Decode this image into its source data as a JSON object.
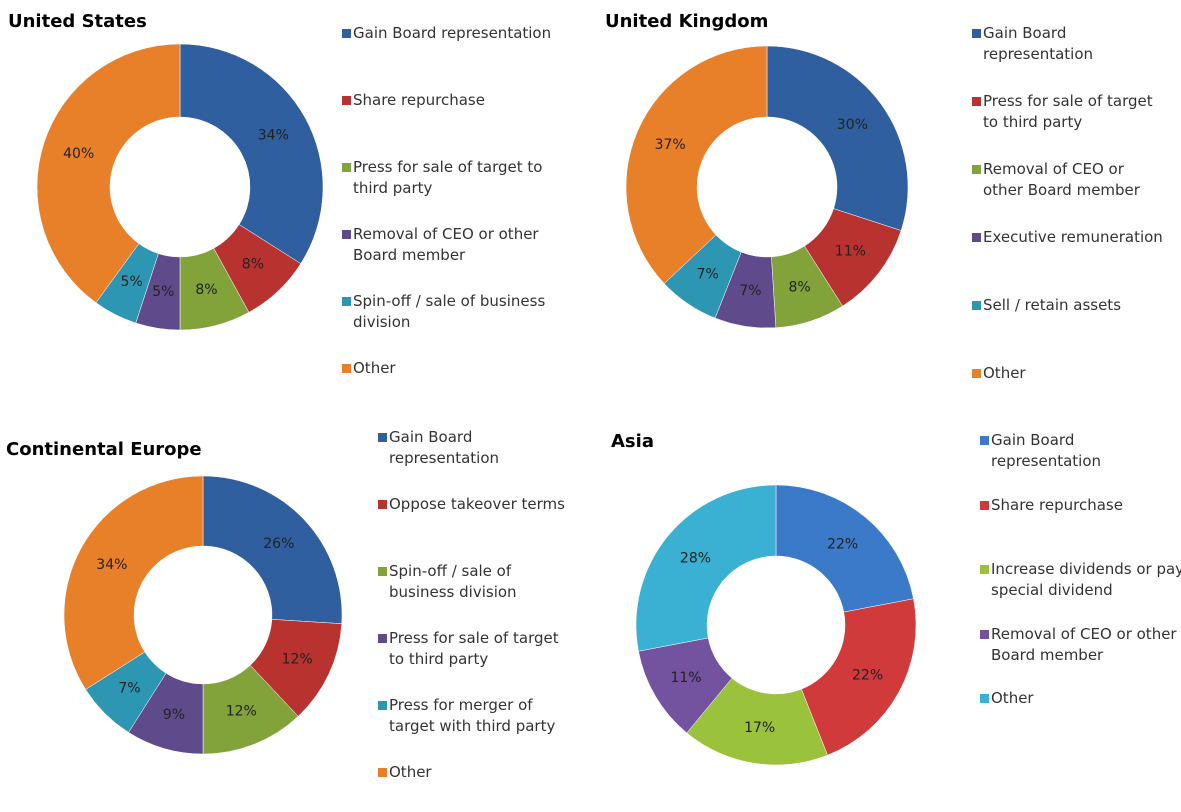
{
  "chart_data": [
    {
      "type": "pie",
      "title": "United States",
      "categories": [
        "Gain Board representation",
        "Share repurchase",
        "Press for sale of target to third party",
        "Removal of CEO or other Board member",
        "Spin-off / sale of business division",
        "Other"
      ],
      "values": [
        34,
        8,
        8,
        5,
        5,
        40
      ],
      "value_labels": [
        "34%",
        "8%",
        "8%",
        "5%",
        "5%",
        "40%"
      ],
      "colors": [
        "#2f5f9f",
        "#b8322f",
        "#82a23a",
        "#5f4a8b",
        "#2d97b3",
        "#e8802a"
      ]
    },
    {
      "type": "pie",
      "title": "United Kingdom",
      "categories": [
        "Gain Board representation",
        "Press for sale of target to third party",
        "Removal of CEO or other Board member",
        "Executive remuneration",
        "Sell / retain assets",
        "Other"
      ],
      "values": [
        30,
        11,
        8,
        7,
        7,
        37
      ],
      "value_labels": [
        "30%",
        "11%",
        "8%",
        "7%",
        "7%",
        "37%"
      ],
      "colors": [
        "#2f5f9f",
        "#b8322f",
        "#82a23a",
        "#5f4a8b",
        "#2d97b3",
        "#e8802a"
      ]
    },
    {
      "type": "pie",
      "title": "Continental Europe",
      "categories": [
        "Gain Board representation",
        "Oppose takeover terms",
        "Spin-off / sale of business division",
        "Press for sale of target to third party",
        "Press for merger of target with third party",
        "Other"
      ],
      "values": [
        26,
        12,
        12,
        9,
        7,
        34
      ],
      "value_labels": [
        "26%",
        "12%",
        "12%",
        "9%",
        "7%",
        "34%"
      ],
      "colors": [
        "#2f5f9f",
        "#b8322f",
        "#82a23a",
        "#5f4a8b",
        "#2d97b3",
        "#e8802a"
      ]
    },
    {
      "type": "pie",
      "title": "Asia",
      "categories": [
        "Gain Board representation",
        "Share repurchase",
        "Increase dividends or pay special dividend",
        "Removal of CEO or other Board member",
        "Other"
      ],
      "values": [
        22,
        22,
        17,
        11,
        28
      ],
      "value_labels": [
        "22%",
        "22%",
        "17%",
        "11%",
        "28%"
      ],
      "colors": [
        "#3a7ac8",
        "#d13a3a",
        "#9bc23c",
        "#7352a0",
        "#3ab0d3"
      ]
    }
  ]
}
